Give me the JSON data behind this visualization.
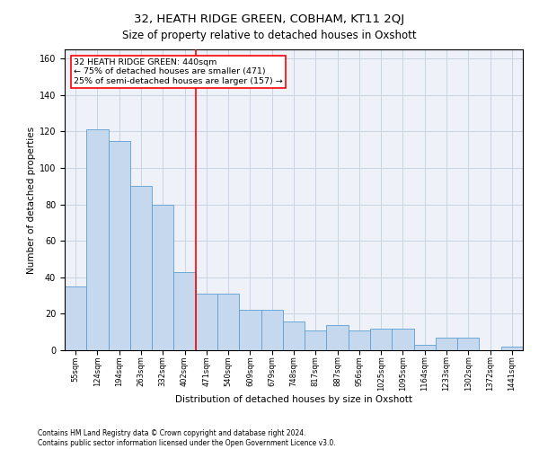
{
  "title": "32, HEATH RIDGE GREEN, COBHAM, KT11 2QJ",
  "subtitle": "Size of property relative to detached houses in Oxshott",
  "xlabel": "Distribution of detached houses by size in Oxshott",
  "ylabel": "Number of detached properties",
  "categories": [
    "55sqm",
    "124sqm",
    "194sqm",
    "263sqm",
    "332sqm",
    "402sqm",
    "471sqm",
    "540sqm",
    "609sqm",
    "679sqm",
    "748sqm",
    "817sqm",
    "887sqm",
    "956sqm",
    "1025sqm",
    "1095sqm",
    "1164sqm",
    "1233sqm",
    "1302sqm",
    "1372sqm",
    "1441sqm"
  ],
  "values": [
    35,
    121,
    115,
    90,
    80,
    43,
    31,
    31,
    22,
    22,
    16,
    11,
    14,
    11,
    12,
    12,
    3,
    7,
    7,
    0,
    2
  ],
  "bar_color": "#c5d8ed",
  "bar_edge_color": "#5a9fd4",
  "vline_x": 5.5,
  "vline_color": "red",
  "annotation_line1": "32 HEATH RIDGE GREEN: 440sqm",
  "annotation_line2": "← 75% of detached houses are smaller (471)",
  "annotation_line3": "25% of semi-detached houses are larger (157) →",
  "annotation_box_color": "white",
  "annotation_box_edge_color": "red",
  "ylim": [
    0,
    165
  ],
  "yticks": [
    0,
    20,
    40,
    60,
    80,
    100,
    120,
    140,
    160
  ],
  "grid_color": "#c8d4e3",
  "background_color": "#eef2f8",
  "footer_line1": "Contains HM Land Registry data © Crown copyright and database right 2024.",
  "footer_line2": "Contains public sector information licensed under the Open Government Licence v3.0.",
  "title_fontsize": 9.5,
  "subtitle_fontsize": 8.5,
  "tick_fontsize": 6,
  "label_fontsize": 7.5,
  "annotation_fontsize": 6.8,
  "footer_fontsize": 5.5
}
